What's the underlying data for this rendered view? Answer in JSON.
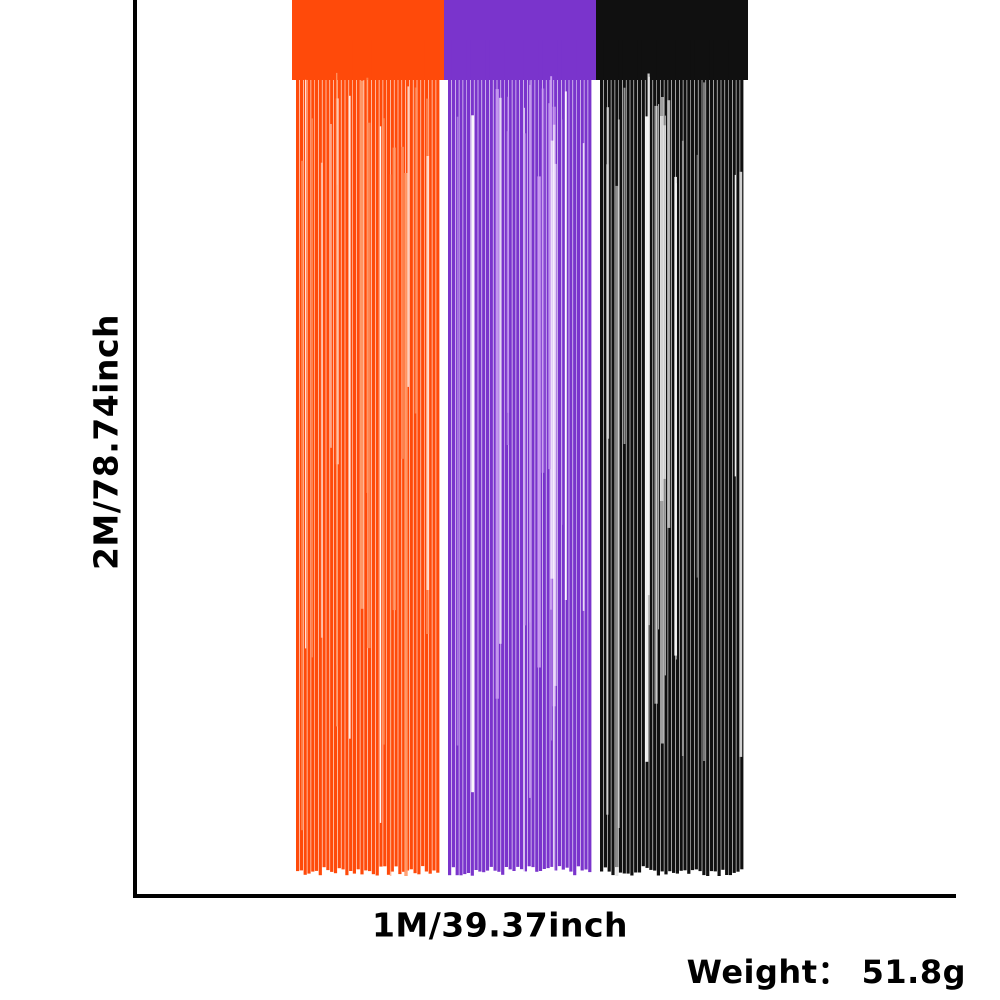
{
  "dimensions": {
    "height_label": "2M/78.74inch",
    "width_label": "1M/39.37inch",
    "weight_label": "Weight： 51.8g"
  },
  "curtain": {
    "panels": [
      {
        "name": "orange",
        "color": "#ff4a0a",
        "highlight": "#ff9a6a"
      },
      {
        "name": "purple",
        "color": "#7a34cc",
        "highlight": "#c79af0"
      },
      {
        "name": "black",
        "color": "#101010",
        "highlight": "#d8d8d8"
      }
    ]
  }
}
